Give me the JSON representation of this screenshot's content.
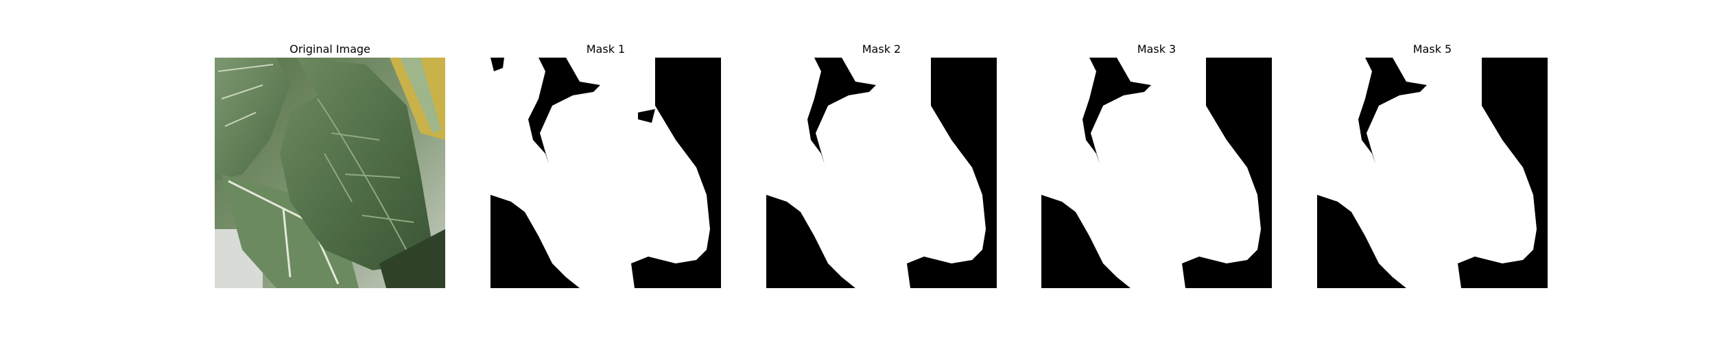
{
  "panels": [
    {
      "title": "Original Image"
    },
    {
      "title": "Mask 1"
    },
    {
      "title": "Mask 2"
    },
    {
      "title": "Mask 3"
    },
    {
      "title": "Mask 5"
    }
  ],
  "colors": {
    "background": "#ffffff",
    "mask_foreground": "#ffffff",
    "mask_background": "#000000",
    "leaf_dark": "#3f5f3c",
    "leaf_mid": "#5f7f56",
    "leaf_light": "#8aa57e",
    "leaf_vein": "#dfe8d4",
    "stem_yellow": "#c9b24a"
  }
}
